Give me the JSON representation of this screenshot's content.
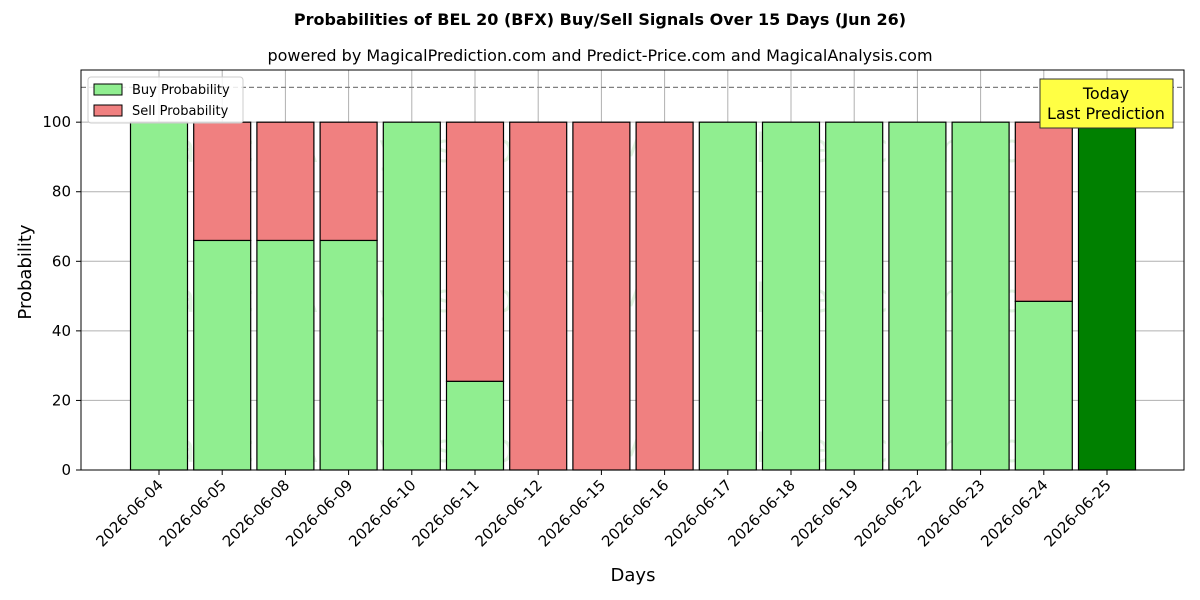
{
  "chart_data": {
    "type": "bar",
    "title": "Probabilities of BEL 20 (BFX) Buy/Sell Signals Over 15 Days (Jun 26)",
    "subtitle": "powered by MagicalPrediction.com and Predict-Price.com and MagicalAnalysis.com",
    "xlabel": "Days",
    "ylabel": "Probability",
    "ylim": [
      0,
      115
    ],
    "yticks": [
      0,
      20,
      40,
      60,
      80,
      100
    ],
    "grid": true,
    "stacked": true,
    "reference_line": 110,
    "categories": [
      "2026-06-04",
      "2026-06-05",
      "2026-06-08",
      "2026-06-09",
      "2026-06-10",
      "2026-06-11",
      "2026-06-12",
      "2026-06-15",
      "2026-06-16",
      "2026-06-17",
      "2026-06-18",
      "2026-06-19",
      "2026-06-22",
      "2026-06-23",
      "2026-06-24",
      "2026-06-25"
    ],
    "series": [
      {
        "name": "Buy Probability",
        "color": "#90ee90",
        "values": [
          100,
          66,
          66,
          66,
          100,
          25.5,
          0,
          0,
          0,
          100,
          100,
          100,
          100,
          100,
          48.5,
          100
        ]
      },
      {
        "name": "Sell Probability",
        "color": "#f08080",
        "values": [
          0,
          34,
          34,
          34,
          0,
          74.5,
          100,
          100,
          100,
          0,
          0,
          0,
          0,
          0,
          51.5,
          0
        ]
      }
    ],
    "highlight": {
      "category": "2026-06-25",
      "color": "#008000"
    },
    "legend_position": "top-left",
    "annotation": {
      "lines": [
        "Today",
        "Last Prediction"
      ],
      "background": "#ffff44"
    },
    "watermarks": [
      "MagicalAnalysis.com",
      "MagicalPrediction.com"
    ]
  }
}
